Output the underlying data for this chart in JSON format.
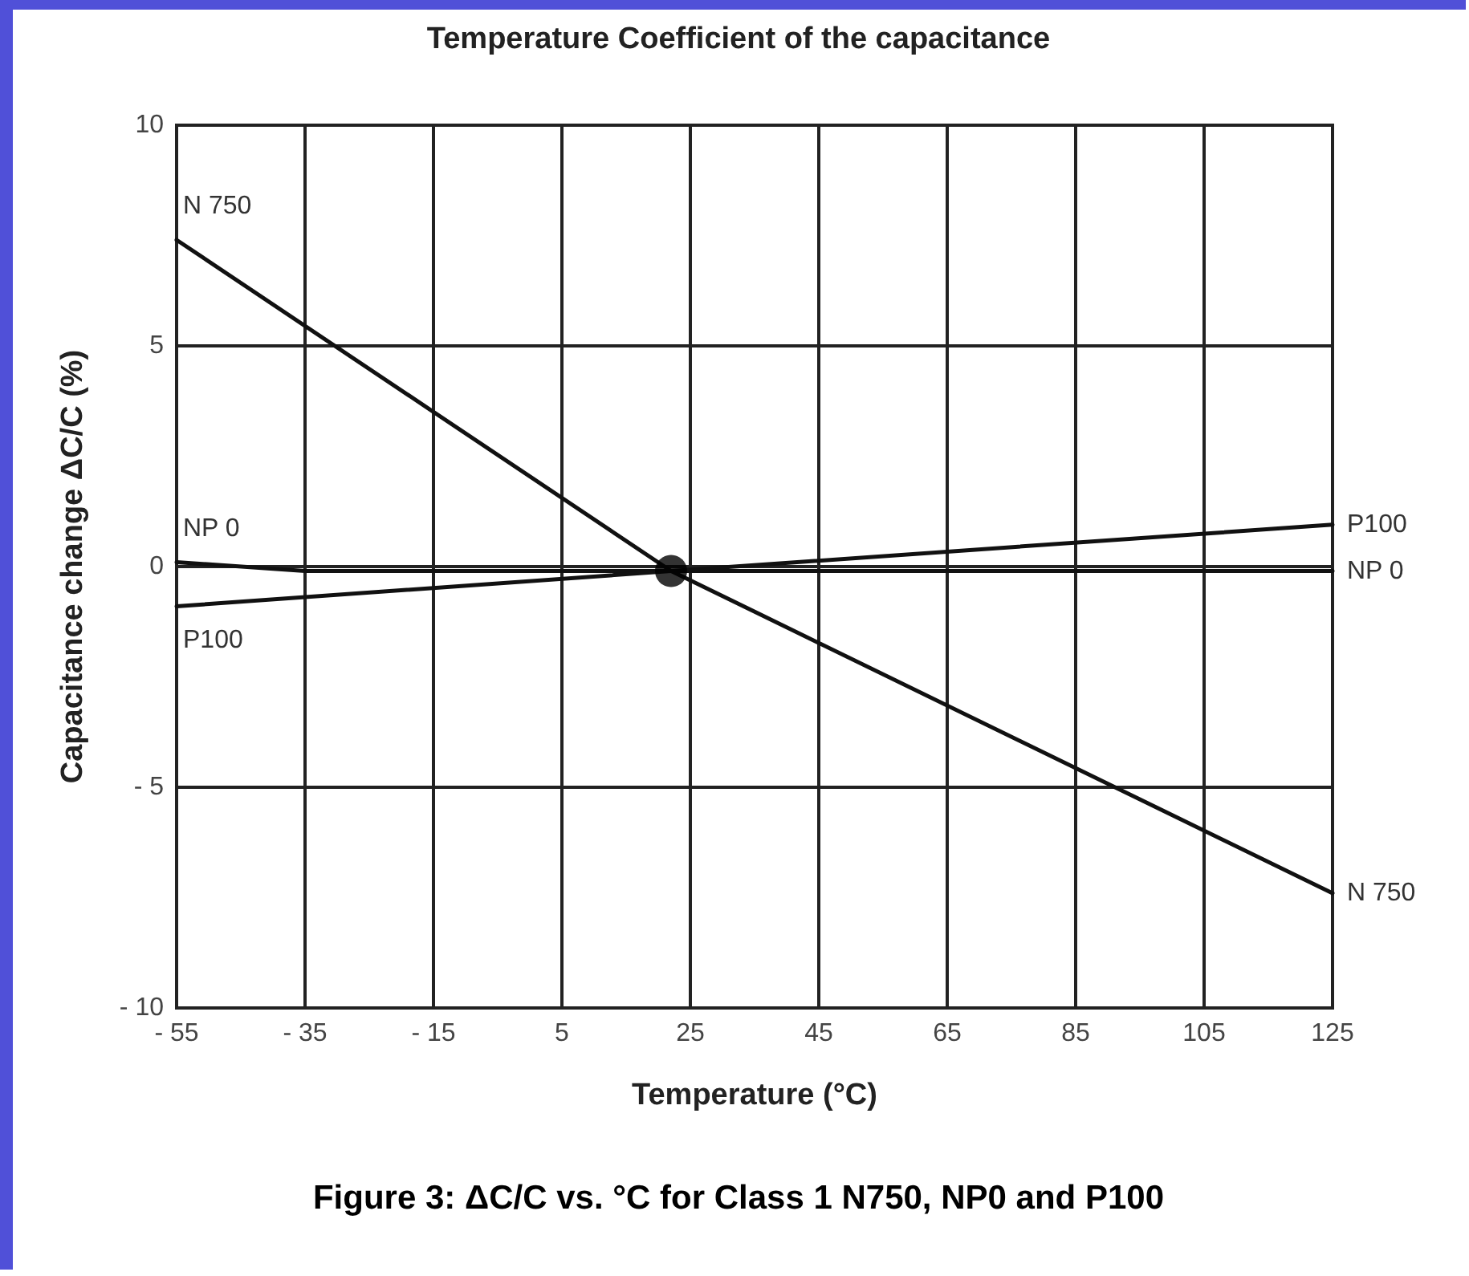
{
  "chart_data": {
    "type": "line",
    "title": "Temperature Coefficient of the capacitance",
    "xlabel": "Temperature (°C)",
    "ylabel": "Capacitance change ΔC/C (%)",
    "annotations": [
      "Figure 3: ΔC/C vs. °C for Class 1 N750, NP0 and P100"
    ],
    "series": [
      {
        "name": "N 750",
        "color": "#111111",
        "x": [
          -55,
          22,
          125
        ],
        "values": [
          7.4,
          -0.1,
          -7.4
        ]
      },
      {
        "name": "NP 0",
        "color": "#111111",
        "x": [
          -55,
          -35,
          125
        ],
        "values": [
          0.1,
          -0.1,
          -0.1
        ]
      },
      {
        "name": "P100",
        "color": "#111111",
        "x": [
          -55,
          22,
          125
        ],
        "values": [
          -0.9,
          -0.1,
          0.95
        ]
      },
      {
        "type": "scatter",
        "marker": "circle",
        "color": "#000000",
        "x": [
          22
        ],
        "values": [
          -0.1
        ]
      }
    ],
    "xlim": [
      -55,
      125
    ],
    "xticks": [
      {
        "value": -55,
        "label": "- 55"
      },
      {
        "value": -35,
        "label": "- 35"
      },
      {
        "value": -15,
        "label": "- 15"
      },
      5,
      25,
      45,
      65,
      85,
      105,
      125
    ],
    "ylim": [
      -10,
      10
    ],
    "yticks": [
      {
        "value": -10,
        "label": "- 10"
      },
      {
        "value": -5,
        "label": "- 5"
      },
      0,
      5,
      10
    ],
    "grid": true,
    "legend": false,
    "marker": "none",
    "line_style": "solid"
  }
}
